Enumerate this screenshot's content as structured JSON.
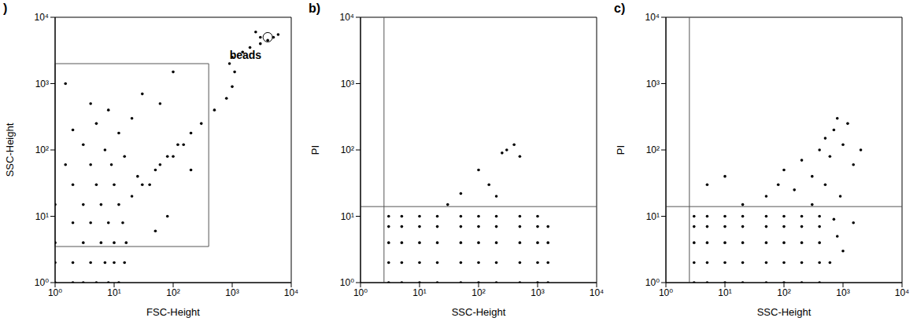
{
  "chart_data": [
    {
      "type": "scatter",
      "title": ")",
      "x_label": "FSC-Height",
      "y_label": "SSC-Height",
      "log": true,
      "color": "#000000",
      "marker": "circle",
      "xlim": [
        1,
        10000
      ],
      "ylim": [
        1,
        10000
      ],
      "xticks": [
        {
          "value": 1,
          "label": "10⁰"
        },
        {
          "value": 10,
          "label": "10¹"
        },
        {
          "value": 100,
          "label": "10²"
        },
        {
          "value": 1000,
          "label": "10³"
        },
        {
          "value": 10000,
          "label": "10⁴"
        }
      ],
      "yticks": [
        {
          "value": 1,
          "label": "10⁰"
        },
        {
          "value": 10,
          "label": "10¹"
        },
        {
          "value": 100,
          "label": "10²"
        },
        {
          "value": 1000,
          "label": "10³"
        },
        {
          "value": 10000,
          "label": "10⁴"
        }
      ],
      "gate": {
        "x": [
          1,
          400
        ],
        "y": [
          3.5,
          2000
        ]
      },
      "annotations": [
        {
          "text": "beads",
          "x": 4000,
          "y": 5000
        }
      ],
      "x": [
        1,
        2,
        3,
        5,
        8,
        12,
        1,
        2,
        4,
        7,
        10,
        15,
        1,
        3,
        6,
        10,
        16,
        2,
        4,
        8,
        14,
        1,
        3,
        6,
        12,
        2,
        5,
        10,
        1.5,
        4,
        9,
        3,
        7,
        15,
        2,
        5,
        12,
        4,
        8,
        20,
        1.5,
        30,
        60,
        100,
        25,
        40,
        60,
        100,
        150,
        200,
        80,
        50,
        20,
        30,
        50,
        80,
        120,
        200,
        300,
        500,
        800,
        1000,
        1100,
        900,
        1000,
        1500,
        2000,
        3000,
        4000,
        5000,
        6000,
        3000,
        2500
      ],
      "values": [
        1,
        1,
        1,
        1,
        1,
        1,
        2,
        2,
        2,
        2,
        2,
        2,
        4,
        4,
        4,
        4,
        4,
        8,
        8,
        8,
        8,
        15,
        15,
        15,
        15,
        30,
        30,
        30,
        60,
        60,
        60,
        120,
        100,
        80,
        200,
        250,
        180,
        500,
        400,
        300,
        1000,
        700,
        500,
        1500,
        40,
        30,
        60,
        80,
        120,
        50,
        10,
        6,
        20,
        30,
        50,
        80,
        120,
        180,
        250,
        400,
        600,
        900,
        1500,
        2000,
        2500,
        3000,
        3500,
        4000,
        4500,
        5000,
        5500,
        5000,
        6000
      ]
    },
    {
      "type": "scatter",
      "title": "b)",
      "x_label": "SSC-Height",
      "y_label": "PI",
      "log": true,
      "color": "#000000",
      "marker": "circle",
      "xlim": [
        1,
        10000
      ],
      "ylim": [
        1,
        10000
      ],
      "xticks": [
        {
          "value": 1,
          "label": "10⁰"
        },
        {
          "value": 10,
          "label": "10¹"
        },
        {
          "value": 100,
          "label": "10²"
        },
        {
          "value": 1000,
          "label": "10³"
        },
        {
          "value": 10000,
          "label": "10⁴"
        }
      ],
      "yticks": [
        {
          "value": 1,
          "label": "10⁰"
        },
        {
          "value": 10,
          "label": "10¹"
        },
        {
          "value": 100,
          "label": "10²"
        },
        {
          "value": 1000,
          "label": "10³"
        },
        {
          "value": 10000,
          "label": "10⁴"
        }
      ],
      "gate": {
        "x": 2.5,
        "y": 14
      },
      "x": [
        3,
        5,
        10,
        20,
        50,
        100,
        200,
        500,
        1000,
        1500,
        3,
        5,
        10,
        20,
        50,
        100,
        200,
        500,
        1000,
        1500,
        3,
        5,
        10,
        20,
        50,
        100,
        200,
        500,
        1000,
        1500,
        3,
        5,
        10,
        20,
        50,
        100,
        200,
        500,
        1000,
        1500,
        3,
        5,
        10,
        20,
        50,
        100,
        200,
        500,
        1000,
        200,
        150,
        100,
        250,
        400,
        500,
        300,
        30,
        50
      ],
      "values": [
        1,
        1,
        1,
        1,
        1,
        1,
        1,
        1,
        1,
        1,
        2,
        2,
        2,
        2,
        2,
        2,
        2,
        2,
        2,
        2,
        4,
        4,
        4,
        4,
        4,
        4,
        4,
        4,
        4,
        4,
        7,
        7,
        7,
        7,
        7,
        7,
        7,
        7,
        7,
        7,
        10,
        10,
        10,
        10,
        10,
        10,
        10,
        10,
        10,
        20,
        30,
        50,
        90,
        120,
        80,
        100,
        15,
        22
      ]
    },
    {
      "type": "scatter",
      "title": "c)",
      "x_label": "SSC-Height",
      "y_label": "PI",
      "log": true,
      "color": "#000000",
      "marker": "circle",
      "xlim": [
        1,
        10000
      ],
      "ylim": [
        1,
        10000
      ],
      "xticks": [
        {
          "value": 1,
          "label": "10⁰"
        },
        {
          "value": 10,
          "label": "10¹"
        },
        {
          "value": 100,
          "label": "10²"
        },
        {
          "value": 1000,
          "label": "10³"
        },
        {
          "value": 10000,
          "label": "10⁴"
        }
      ],
      "yticks": [
        {
          "value": 1,
          "label": "10⁰"
        },
        {
          "value": 10,
          "label": "10¹"
        },
        {
          "value": 100,
          "label": "10²"
        },
        {
          "value": 1000,
          "label": "10³"
        },
        {
          "value": 10000,
          "label": "10⁴"
        }
      ],
      "gate": {
        "x": 2.5,
        "y": 14
      },
      "x": [
        3,
        5,
        10,
        20,
        50,
        100,
        200,
        400,
        3,
        5,
        10,
        20,
        50,
        100,
        200,
        400,
        3,
        5,
        10,
        20,
        50,
        100,
        200,
        400,
        3,
        5,
        10,
        20,
        50,
        100,
        200,
        400,
        3,
        5,
        10,
        20,
        50,
        100,
        200,
        400,
        600,
        800,
        1000,
        1500,
        700,
        5,
        10,
        20,
        50,
        80,
        100,
        150,
        200,
        300,
        400,
        500,
        600,
        700,
        800,
        1000,
        1200,
        1500,
        2000,
        900,
        300,
        500
      ],
      "values": [
        1,
        1,
        1,
        1,
        1,
        1,
        1,
        1,
        2,
        2,
        2,
        2,
        2,
        2,
        2,
        2,
        4,
        4,
        4,
        4,
        4,
        4,
        4,
        4,
        7,
        7,
        7,
        7,
        7,
        7,
        7,
        7,
        10,
        10,
        10,
        10,
        10,
        10,
        10,
        10,
        2,
        5,
        3,
        8,
        9,
        30,
        40,
        15,
        20,
        30,
        50,
        25,
        70,
        40,
        100,
        150,
        80,
        200,
        300,
        120,
        250,
        60,
        100,
        20,
        15,
        30
      ]
    }
  ]
}
